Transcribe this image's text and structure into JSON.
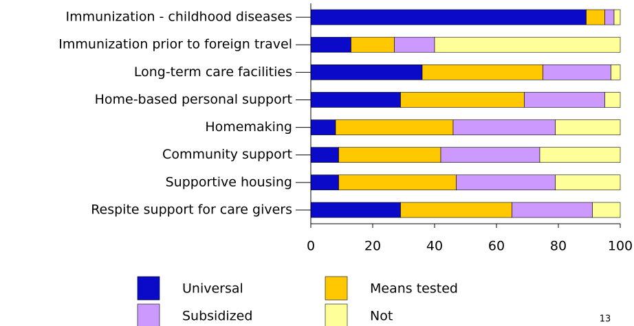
{
  "chart_data": {
    "type": "stacked-barh",
    "categories": [
      "Immunization - childhood diseases",
      "Immunization prior to foreign travel",
      "Long-term care facilities",
      "Home-based personal support",
      "Homemaking",
      "Community support",
      "Supportive housing",
      "Respite support for care givers"
    ],
    "series": [
      {
        "name": "Universal",
        "color": "#0a0ac8",
        "values": [
          89,
          13,
          36,
          29,
          8,
          9,
          9,
          29
        ]
      },
      {
        "name": "Means tested",
        "color": "#ffc800",
        "values": [
          6,
          14,
          39,
          40,
          38,
          33,
          38,
          36
        ]
      },
      {
        "name": "Subsidized",
        "color": "#cc99ff",
        "values": [
          3,
          13,
          22,
          26,
          33,
          32,
          32,
          26
        ]
      },
      {
        "name": "Not",
        "color": "#ffff99",
        "values": [
          2,
          60,
          3,
          5,
          21,
          26,
          21,
          9
        ]
      }
    ],
    "xlim": [
      0,
      100
    ],
    "xticks": [
      0,
      20,
      40,
      60,
      80,
      100
    ],
    "legend": "bottom"
  },
  "footer": {
    "page_number": "13"
  }
}
